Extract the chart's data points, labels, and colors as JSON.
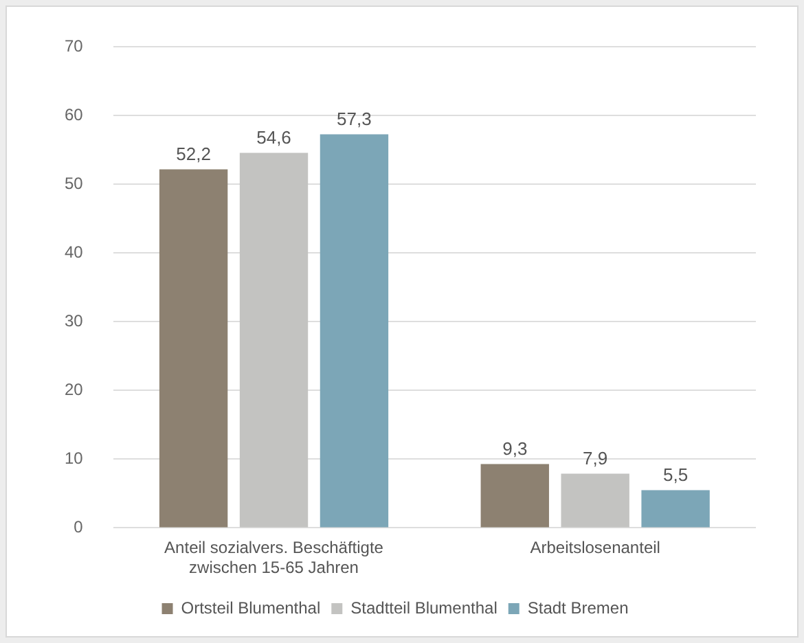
{
  "chart_data": {
    "type": "bar",
    "categories": [
      "Anteil sozialvers. Beschäftigte\nzwischen 15-65 Jahren",
      "Arbeitslosenanteil"
    ],
    "series": [
      {
        "name": "Ortsteil Blumenthal",
        "color": "#8d8171",
        "values": [
          52.2,
          9.3
        ],
        "value_labels": [
          "52,2",
          "9,3"
        ]
      },
      {
        "name": "Stadtteil Blumenthal",
        "color": "#c3c3c1",
        "values": [
          54.6,
          7.9
        ],
        "value_labels": [
          "54,6",
          "7,9"
        ]
      },
      {
        "name": "Stadt Bremen",
        "color": "#7ca6b7",
        "values": [
          57.3,
          5.5
        ],
        "value_labels": [
          "57,3",
          "5,5"
        ]
      }
    ],
    "ylim": [
      0,
      70
    ],
    "yticks": [
      0,
      10,
      20,
      30,
      40,
      50,
      60,
      70
    ],
    "grid": "y",
    "legend": "bottom"
  }
}
